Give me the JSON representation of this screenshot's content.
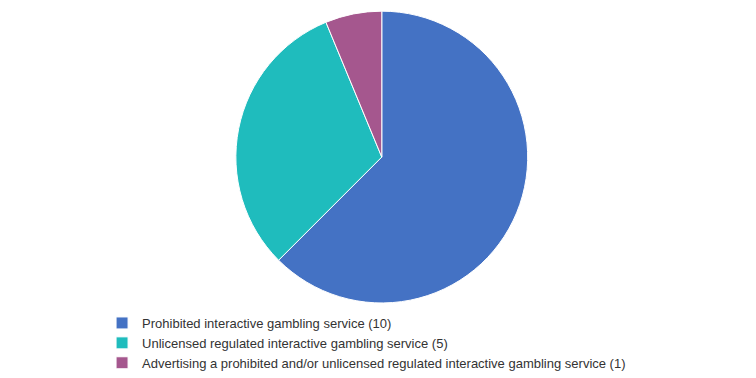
{
  "chart_data": {
    "type": "pie",
    "categories": [
      "Prohibited interactive gambling service (10)",
      "Unlicensed regulated interactive gambling service (5)",
      "Advertising a prohibited and/or unlicensed regulated interactive gambling service (1)"
    ],
    "values": [
      10,
      5,
      1
    ],
    "colors": [
      "#4472c4",
      "#1fbcbd",
      "#a5578e"
    ],
    "legend": "bottom"
  }
}
